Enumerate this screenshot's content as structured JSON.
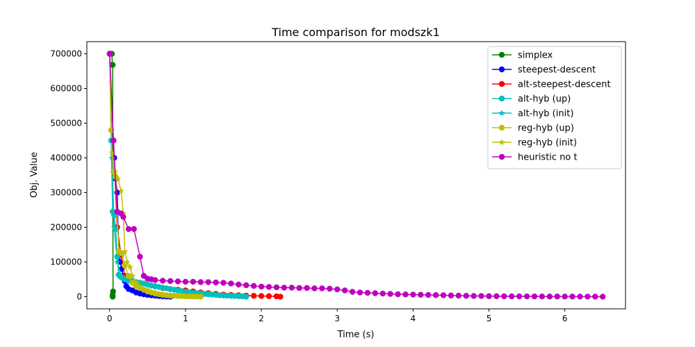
{
  "chart_data": {
    "type": "line",
    "title": "Time comparison for modszk1",
    "xlabel": "Time (s)",
    "ylabel": "Obj. Value",
    "xlim": [
      -0.3,
      6.8
    ],
    "ylim": [
      -35000,
      735000
    ],
    "xticks": [
      0,
      1,
      2,
      3,
      4,
      5,
      6
    ],
    "yticks": [
      0,
      100000,
      200000,
      300000,
      400000,
      500000,
      600000,
      700000
    ],
    "xtick_labels": [
      "0",
      "1",
      "2",
      "3",
      "4",
      "5",
      "6"
    ],
    "ytick_labels": [
      "0",
      "100000",
      "200000",
      "300000",
      "400000",
      "500000",
      "600000",
      "700000"
    ],
    "grid": false,
    "legend_position": "top-right",
    "series": [
      {
        "name": "simplex",
        "color": "#008000",
        "marker": "circle",
        "x": [
          0.02,
          0.03,
          0.035,
          0.04,
          0.045,
          0.04,
          0.04
        ],
        "y": [
          700000,
          700000,
          668000,
          668000,
          15000,
          5000,
          0
        ]
      },
      {
        "name": "steepest-descent",
        "color": "#0000ff",
        "marker": "circle",
        "x": [
          0.0,
          0.03,
          0.06,
          0.08,
          0.1,
          0.12,
          0.14,
          0.16,
          0.18,
          0.2,
          0.22,
          0.25,
          0.3,
          0.35,
          0.4,
          0.45,
          0.5,
          0.55,
          0.6,
          0.65,
          0.7,
          0.75,
          0.8
        ],
        "y": [
          700000,
          450000,
          400000,
          340000,
          300000,
          130000,
          100000,
          80000,
          60000,
          45000,
          30000,
          22000,
          18000,
          12000,
          9000,
          7000,
          5000,
          4000,
          3000,
          2000,
          1000,
          500,
          0
        ]
      },
      {
        "name": "alt-steepest-descent",
        "color": "#ff0000",
        "marker": "circle",
        "x": [
          0.0,
          0.05,
          0.1,
          0.15,
          0.2,
          0.3,
          0.4,
          0.5,
          0.6,
          0.7,
          0.8,
          0.9,
          1.0,
          1.1,
          1.2,
          1.3,
          1.4,
          1.5,
          1.6,
          1.7,
          1.8,
          1.9,
          2.0,
          2.1,
          2.2,
          2.25
        ],
        "y": [
          700000,
          450000,
          200000,
          120000,
          60000,
          45000,
          40000,
          35000,
          30000,
          25000,
          22000,
          20000,
          18000,
          15000,
          12000,
          10000,
          8000,
          6000,
          5000,
          4000,
          3000,
          2500,
          2000,
          1500,
          1000,
          0
        ]
      },
      {
        "name": "alt-hyb (up)",
        "color": "#00bfbf",
        "marker": "circle",
        "x": [
          0.0,
          0.02,
          0.04,
          0.06,
          0.08,
          0.1,
          0.12,
          0.14,
          0.16,
          0.2,
          0.25,
          0.3,
          0.35,
          0.4,
          0.45,
          0.5,
          0.55,
          0.6,
          0.65,
          0.7,
          0.75,
          0.8,
          0.85,
          0.9,
          0.95,
          1.0,
          1.05,
          1.1,
          1.15,
          1.2,
          1.25,
          1.3,
          1.35,
          1.4,
          1.45,
          1.5,
          1.55,
          1.6,
          1.65,
          1.7,
          1.75,
          1.8
        ],
        "y": [
          700000,
          450000,
          245000,
          235000,
          195000,
          115000,
          63000,
          58000,
          55000,
          50000,
          46000,
          44000,
          42000,
          40000,
          38000,
          35000,
          32000,
          30000,
          28000,
          26000,
          24000,
          22000,
          20000,
          18000,
          16000,
          14000,
          12000,
          11000,
          10000,
          9000,
          8000,
          7000,
          6000,
          5000,
          4000,
          3500,
          3000,
          2500,
          2000,
          1500,
          1000,
          0
        ]
      },
      {
        "name": "alt-hyb (init)",
        "color": "#00bfbf",
        "marker": "star",
        "x": [
          0.0,
          0.03,
          0.06,
          0.1,
          0.15,
          0.2,
          0.3
        ],
        "y": [
          700000,
          400000,
          200000,
          100000,
          60000,
          50000,
          45000
        ]
      },
      {
        "name": "reg-hyb (up)",
        "color": "#bfbf00",
        "marker": "circle",
        "x": [
          0.0,
          0.02,
          0.05,
          0.08,
          0.12,
          0.16,
          0.2,
          0.25,
          0.3,
          0.35,
          0.4,
          0.45,
          0.5,
          0.55,
          0.6,
          0.65,
          0.7,
          0.75,
          0.8,
          0.85,
          0.9,
          0.95,
          1.0,
          1.05,
          1.1,
          1.15,
          1.2
        ],
        "y": [
          700000,
          480000,
          360000,
          345000,
          130000,
          125000,
          90000,
          60000,
          40000,
          30000,
          25000,
          20000,
          15000,
          12000,
          9000,
          7000,
          5000,
          4000,
          3000,
          2500,
          2000,
          1500,
          1000,
          800,
          500,
          300,
          0
        ]
      },
      {
        "name": "reg-hyb (init)",
        "color": "#bfbf00",
        "marker": "star",
        "x": [
          0.0,
          0.03,
          0.07,
          0.11,
          0.15,
          0.18,
          0.2,
          0.23,
          0.27,
          0.3,
          0.35,
          0.4,
          0.5,
          0.6,
          0.7,
          0.8,
          0.9,
          1.0
        ],
        "y": [
          700000,
          415000,
          360000,
          340000,
          305000,
          240000,
          130000,
          100000,
          85000,
          60000,
          40000,
          30000,
          20000,
          12000,
          8000,
          5000,
          3000,
          1000
        ]
      },
      {
        "name": "heuristic no t",
        "color": "#bf00bf",
        "marker": "circle",
        "x": [
          0.0,
          0.05,
          0.1,
          0.15,
          0.18,
          0.25,
          0.32,
          0.4,
          0.45,
          0.5,
          0.55,
          0.6,
          0.7,
          0.8,
          0.9,
          1.0,
          1.1,
          1.2,
          1.3,
          1.4,
          1.5,
          1.6,
          1.7,
          1.8,
          1.9,
          2.0,
          2.1,
          2.2,
          2.3,
          2.4,
          2.5,
          2.6,
          2.7,
          2.8,
          2.9,
          3.0,
          3.1,
          3.2,
          3.3,
          3.4,
          3.5,
          3.6,
          3.7,
          3.8,
          3.9,
          4.0,
          4.1,
          4.2,
          4.3,
          4.4,
          4.5,
          4.6,
          4.7,
          4.8,
          4.9,
          5.0,
          5.1,
          5.2,
          5.3,
          5.4,
          5.5,
          5.6,
          5.7,
          5.8,
          5.9,
          6.0,
          6.1,
          6.2,
          6.3,
          6.4,
          6.5
        ],
        "y": [
          700000,
          450000,
          245000,
          240000,
          230000,
          195000,
          195000,
          115000,
          60000,
          52000,
          50000,
          48000,
          46000,
          45000,
          44000,
          43000,
          43000,
          42000,
          42000,
          41000,
          40000,
          38000,
          35000,
          33000,
          31000,
          29000,
          28000,
          27000,
          26000,
          26000,
          25000,
          25000,
          24000,
          24000,
          23000,
          21000,
          18000,
          14000,
          12000,
          11000,
          10000,
          9000,
          8000,
          7000,
          6500,
          6000,
          5500,
          5000,
          4500,
          4000,
          3500,
          3000,
          2500,
          2000,
          2000,
          1500,
          1500,
          1200,
          1000,
          1000,
          800,
          800,
          600,
          500,
          500,
          400,
          300,
          300,
          200,
          100,
          0
        ]
      }
    ]
  }
}
